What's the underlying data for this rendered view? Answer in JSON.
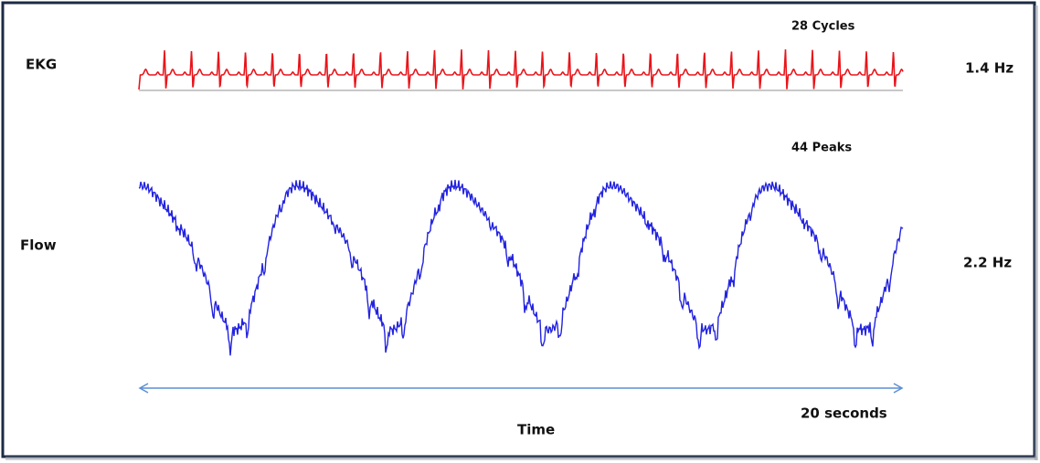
{
  "ekg": {
    "label": "EKG",
    "count_label": "28 Cycles",
    "frequency": "1.4 Hz"
  },
  "flow": {
    "label": "Flow",
    "count_label": "44 Peaks",
    "frequency": "2.2 Hz"
  },
  "time_axis": {
    "label": "Time",
    "duration": "20 seconds"
  }
}
